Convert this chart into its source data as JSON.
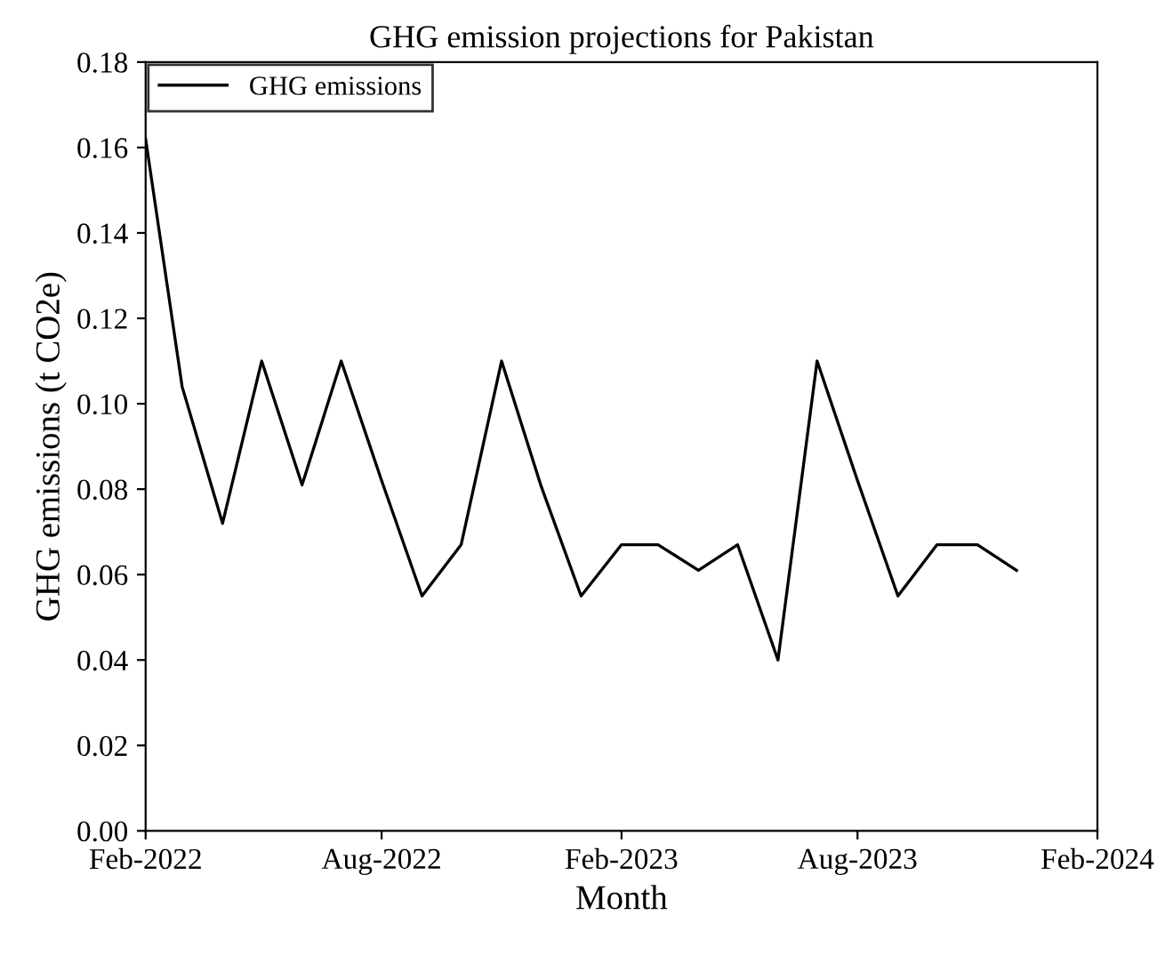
{
  "chart_data": {
    "type": "line",
    "title": "GHG emission projections for Pakistan",
    "xlabel": "Month",
    "ylabel": "GHG emissions (t CO2e)",
    "x": [
      "2022-02",
      "2022-03",
      "2022-04",
      "2022-05",
      "2022-06",
      "2022-07",
      "2022-08",
      "2022-09",
      "2022-10",
      "2022-11",
      "2022-12",
      "2023-01",
      "2023-02",
      "2023-03",
      "2023-04",
      "2023-05",
      "2023-06",
      "2023-07",
      "2023-08",
      "2023-09",
      "2023-10",
      "2023-11",
      "2023-12"
    ],
    "series": [
      {
        "name": "GHG emissions",
        "color": "#000000",
        "values": [
          0.162,
          0.104,
          0.072,
          0.11,
          0.081,
          0.11,
          0.082,
          0.055,
          0.067,
          0.11,
          0.081,
          0.055,
          0.067,
          0.067,
          0.061,
          0.067,
          0.04,
          0.11,
          0.082,
          0.055,
          0.067,
          0.067,
          0.061
        ]
      }
    ],
    "xlim": [
      "2022-02",
      "2024-02"
    ],
    "xticks": [
      {
        "value": "2022-02",
        "label": "Feb-2022"
      },
      {
        "value": "2022-08",
        "label": "Aug-2022"
      },
      {
        "value": "2023-02",
        "label": "Feb-2023"
      },
      {
        "value": "2023-08",
        "label": "Aug-2023"
      },
      {
        "value": "2024-02",
        "label": "Feb-2024"
      }
    ],
    "ylim": [
      0,
      0.18
    ],
    "yticks": [
      {
        "value": 0,
        "label": "0.00"
      },
      {
        "value": 0.02,
        "label": "0.02"
      },
      {
        "value": 0.04,
        "label": "0.04"
      },
      {
        "value": 0.06,
        "label": "0.06"
      },
      {
        "value": 0.08,
        "label": "0.08"
      },
      {
        "value": 0.1,
        "label": "0.10"
      },
      {
        "value": 0.12,
        "label": "0.12"
      },
      {
        "value": 0.14,
        "label": "0.14"
      },
      {
        "value": 0.16,
        "label": "0.16"
      },
      {
        "value": 0.18,
        "label": "0.18"
      }
    ],
    "legend": "top left",
    "grid": false,
    "marker": "none",
    "line_style": "solid"
  }
}
